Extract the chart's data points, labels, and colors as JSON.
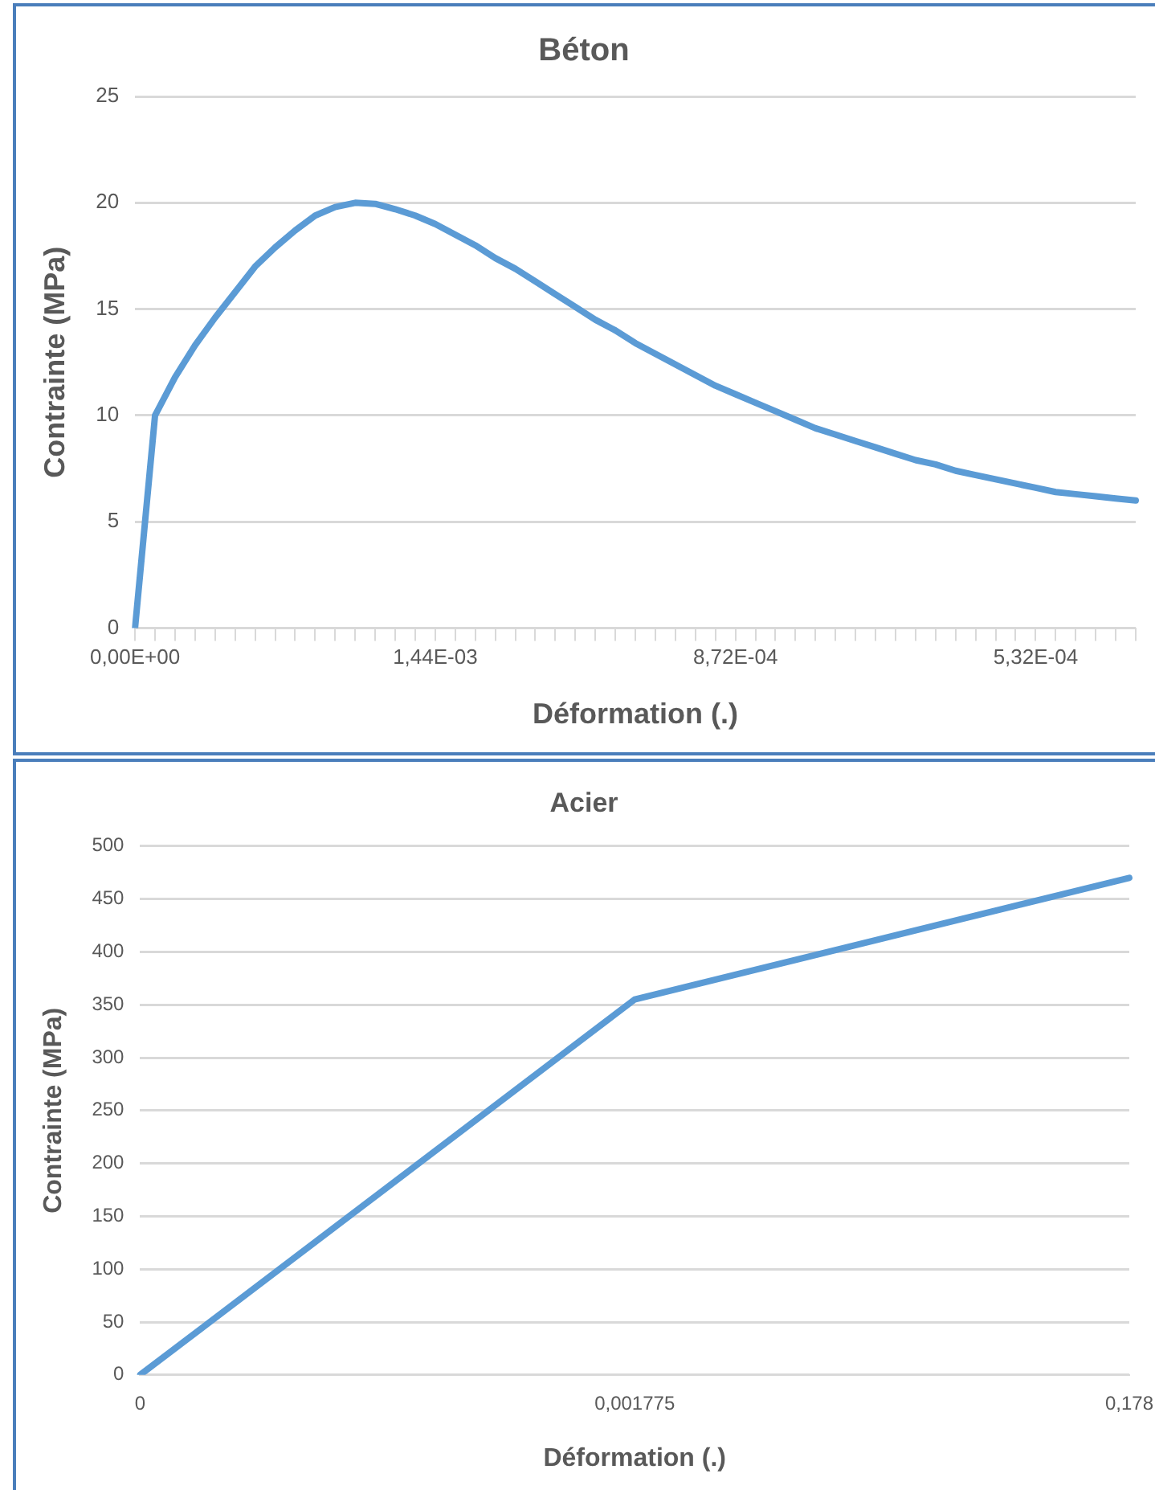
{
  "chart_data": [
    {
      "type": "line",
      "title": "Béton",
      "xlabel": "Déformation (.)",
      "ylabel": "Contrainte (MPa)",
      "categories": [
        "0,00E+00",
        null,
        null,
        null,
        null,
        null,
        null,
        null,
        null,
        null,
        null,
        null,
        null,
        null,
        null,
        "1,44E-03",
        null,
        null,
        null,
        null,
        null,
        null,
        null,
        null,
        null,
        null,
        null,
        null,
        null,
        null,
        "8,72E-04",
        null,
        null,
        null,
        null,
        null,
        null,
        null,
        null,
        null,
        null,
        null,
        null,
        null,
        null,
        "5,32E-04",
        null,
        null,
        null,
        null,
        null
      ],
      "series": [
        {
          "color": "#5b9bd5",
          "values": [
            0,
            10,
            11.8,
            13.3,
            14.6,
            15.8,
            17,
            17.9,
            18.7,
            19.4,
            19.8,
            20,
            19.95,
            19.7,
            19.4,
            19,
            18.5,
            18,
            17.4,
            16.9,
            16.3,
            15.7,
            15.1,
            14.5,
            14,
            13.4,
            12.9,
            12.4,
            11.9,
            11.4,
            11,
            10.6,
            10.2,
            9.8,
            9.4,
            9.1,
            8.8,
            8.5,
            8.2,
            7.9,
            7.7,
            7.4,
            7.2,
            7,
            6.8,
            6.6,
            6.4,
            6.3,
            6.2,
            6.1,
            6
          ]
        }
      ],
      "ylim": [
        0,
        25
      ],
      "yticks": [
        0,
        5,
        10,
        15,
        20,
        25
      ],
      "grid": "y",
      "legend": false,
      "marker": "none",
      "line_style": "solid"
    },
    {
      "type": "line",
      "title": "Acier",
      "xlabel": "Déformation (.)",
      "ylabel": "Contrainte (MPa)",
      "categories": [
        "0",
        "0,001775",
        "0,178"
      ],
      "series": [
        {
          "color": "#5b9bd5",
          "values": [
            0,
            355,
            470
          ]
        }
      ],
      "ylim": [
        0,
        500
      ],
      "yticks": [
        0,
        50,
        100,
        150,
        200,
        250,
        300,
        350,
        400,
        450,
        500
      ],
      "grid": "y",
      "legend": false,
      "marker": "none",
      "line_style": "solid"
    }
  ]
}
